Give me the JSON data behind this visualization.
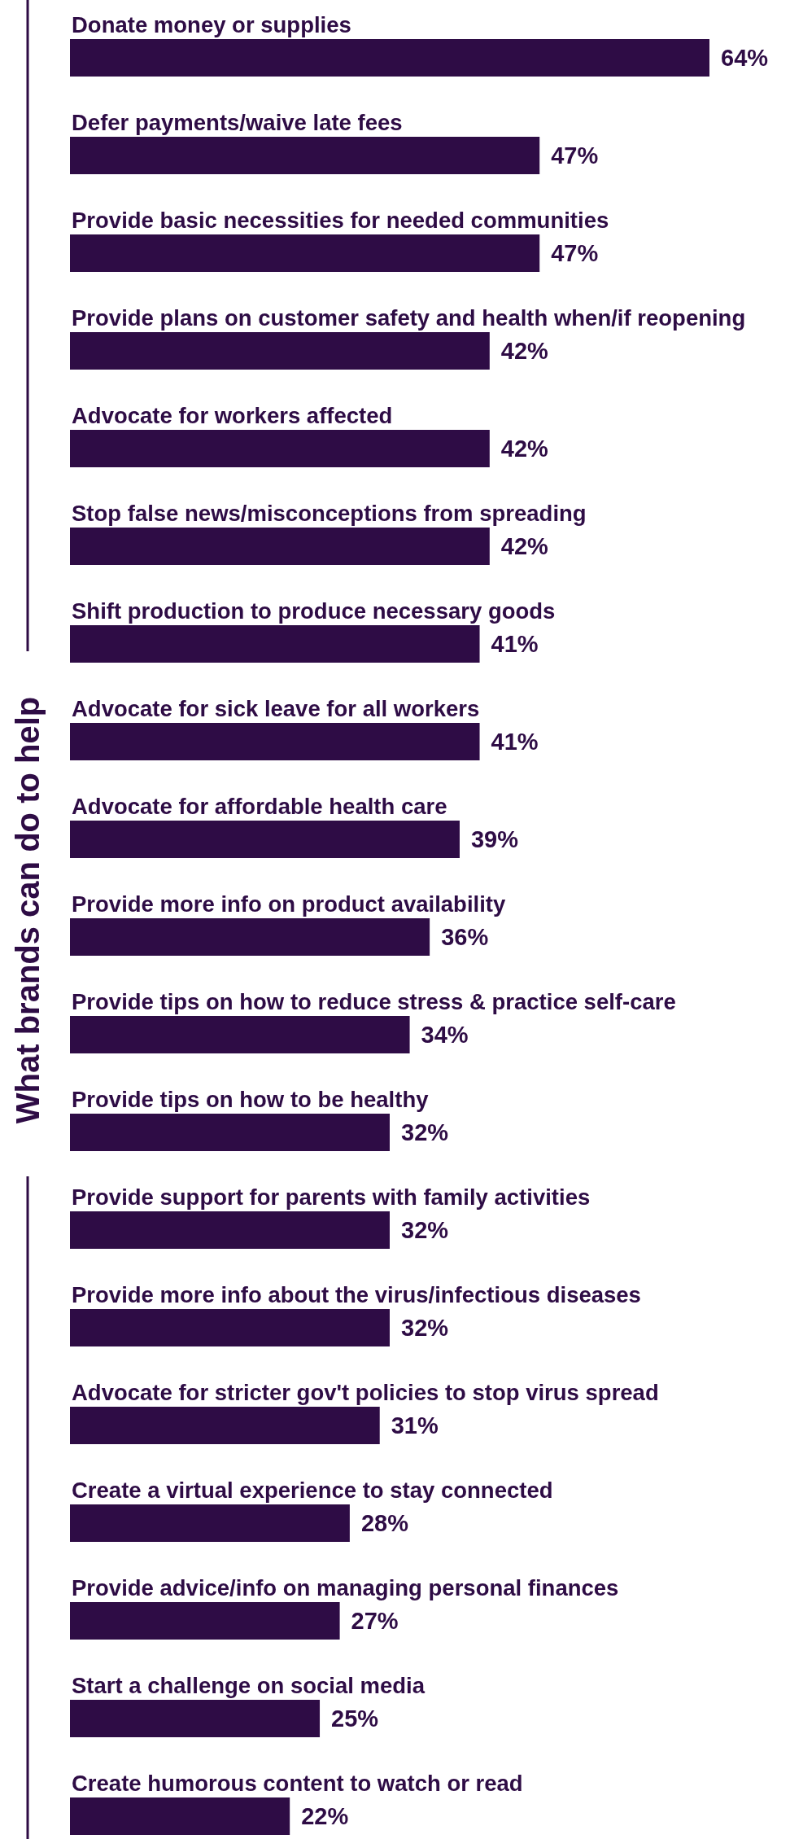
{
  "chart_data": {
    "type": "bar",
    "orientation": "horizontal",
    "ylabel": "What brands can do to help",
    "color": "#2e0c45",
    "categories": [
      "Donate money or supplies",
      "Defer payments/waive late fees",
      "Provide basic necessities for needed communities",
      "Provide plans on customer safety and health when/if reopening",
      "Advocate for workers affected",
      "Stop false news/misconceptions from spreading",
      "Shift production to produce necessary goods",
      "Advocate for sick leave for all workers",
      "Advocate for affordable health care",
      "Provide more info on product availability",
      "Provide tips on how to reduce stress & practice self-care",
      "Provide tips on how to be healthy",
      "Provide support for parents with family activities",
      "Provide more info about the virus/infectious diseases",
      "Advocate for stricter gov't policies to stop virus spread",
      "Create a virtual experience to stay connected",
      "Provide advice/info on managing personal finances",
      "Start a challenge on social media",
      "Create humorous content to watch or read"
    ],
    "value_labels": [
      "64%",
      "47%",
      "47%",
      "42%",
      "42%",
      "42%",
      "41%",
      "41%",
      "39%",
      "36%",
      "34%",
      "32%",
      "32%",
      "32%",
      "31%",
      "28%",
      "27%",
      "25%",
      "22%"
    ],
    "values": [
      64,
      47,
      47,
      42,
      42,
      42,
      41,
      41,
      39,
      36,
      34,
      32,
      32,
      32,
      31,
      28,
      27,
      25,
      22
    ]
  }
}
